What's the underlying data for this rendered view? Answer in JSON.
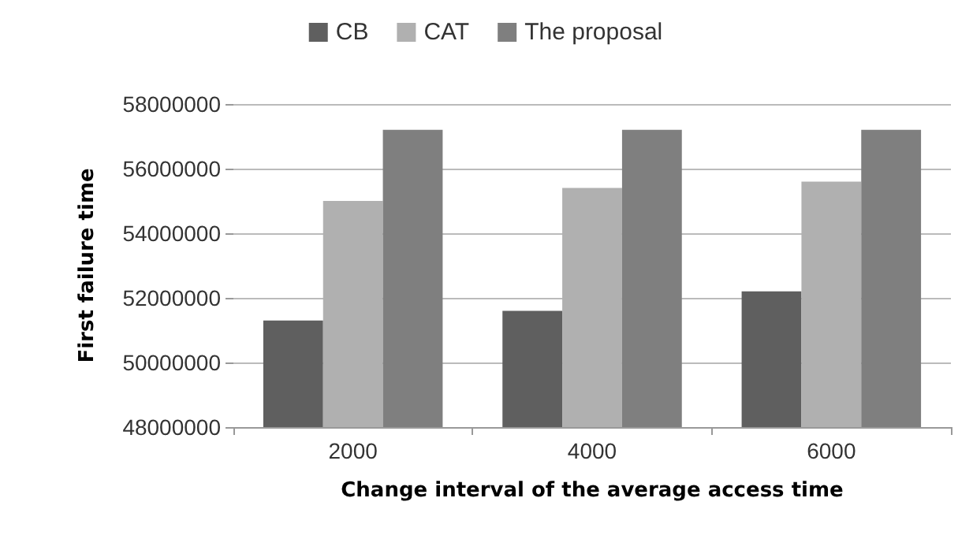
{
  "chart_data": {
    "type": "bar",
    "xlabel": "Change interval of the average access time",
    "ylabel": "First failure time",
    "categories": [
      "2000",
      "4000",
      "6000"
    ],
    "series": [
      {
        "name": "CB",
        "color": "#5f5f5f",
        "values": [
          51300000,
          51600000,
          52200000
        ]
      },
      {
        "name": "CAT",
        "color": "#b0b0b0",
        "values": [
          55000000,
          55400000,
          55600000
        ]
      },
      {
        "name": "The proposal",
        "color": "#7f7f7f",
        "values": [
          57200000,
          57200000,
          57200000
        ]
      }
    ],
    "ylim": [
      48000000,
      58000000
    ],
    "yticks": [
      48000000,
      50000000,
      52000000,
      54000000,
      56000000,
      58000000
    ],
    "grid": "y",
    "legend": "top"
  }
}
